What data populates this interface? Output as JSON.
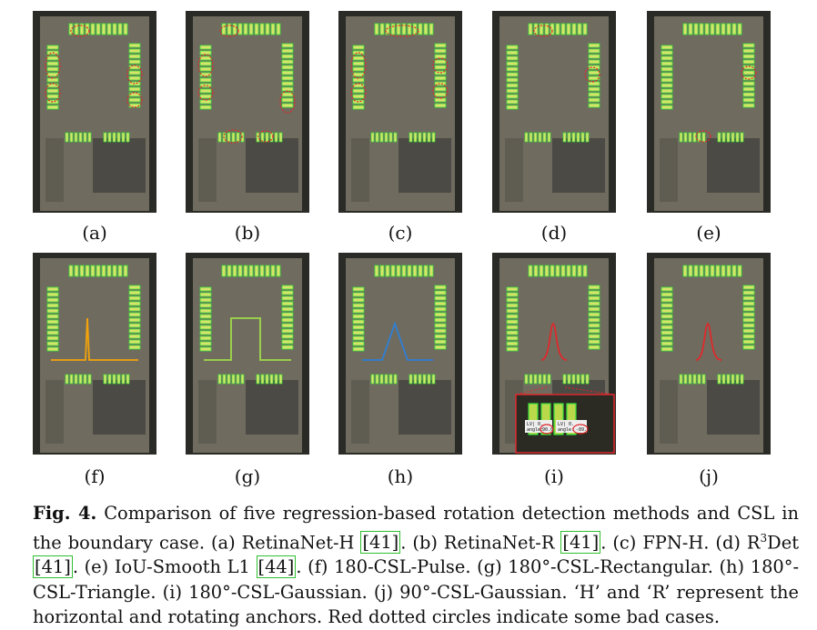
{
  "panels": [
    {
      "label": "(a)",
      "overlay": "none"
    },
    {
      "label": "(b)",
      "overlay": "none"
    },
    {
      "label": "(c)",
      "overlay": "none"
    },
    {
      "label": "(d)",
      "overlay": "none"
    },
    {
      "label": "(e)",
      "overlay": "none"
    },
    {
      "label": "(f)",
      "overlay": "pulse",
      "overlay_color": "#f2a20a"
    },
    {
      "label": "(g)",
      "overlay": "rectangular",
      "overlay_color": "#9fd94a"
    },
    {
      "label": "(h)",
      "overlay": "triangle",
      "overlay_color": "#2f7fd6"
    },
    {
      "label": "(i)",
      "overlay": "gaussian",
      "overlay_color": "#e0282c"
    },
    {
      "label": "(j)",
      "overlay": "gaussian",
      "overlay_color": "#e0282c"
    }
  ],
  "inset": {
    "labels": [
      "LV| 0.",
      "angle:",
      "90.0",
      "LV| 0.",
      "angle:",
      "-89.0"
    ]
  },
  "caption": {
    "fig_label": "Fig. 4.",
    "t1": " Comparison of five regression-based rotation detection methods and CSL in the boundary case. (a) RetinaNet-H ",
    "r1": "[41]",
    "t2": ". (b) RetinaNet-R ",
    "r2": "[41]",
    "t3": ". (c) FPN-H. (d) R",
    "sup": "3",
    "t4": "Det ",
    "r3": "[41]",
    "t5": ". (e) IoU-Smooth L1 ",
    "r4": "[44]",
    "t6": ". (f) 180-CSL-Pulse. (g) 180°-CSL-Rectangular. (h) 180°-CSL-Triangle. (i) 180°-CSL-Gaussian. (j) 90°-CSL-Gaussian. ‘H’ and ‘R’ represent the horizontal and rotating anchors. Red dotted circles indicate some bad cases."
  },
  "colors": {
    "box_green": "#35e03a",
    "circle_red": "#e0282c",
    "lot_gray": "#6f6c5f"
  }
}
